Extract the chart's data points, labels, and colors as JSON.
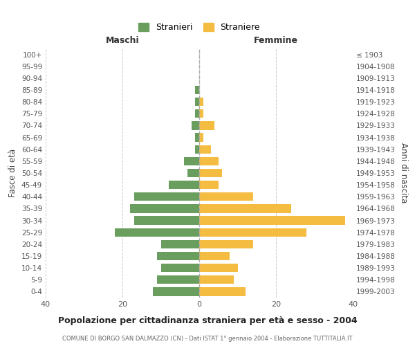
{
  "age_groups": [
    "0-4",
    "5-9",
    "10-14",
    "15-19",
    "20-24",
    "25-29",
    "30-34",
    "35-39",
    "40-44",
    "45-49",
    "50-54",
    "55-59",
    "60-64",
    "65-69",
    "70-74",
    "75-79",
    "80-84",
    "85-89",
    "90-94",
    "95-99",
    "100+"
  ],
  "birth_years": [
    "1999-2003",
    "1994-1998",
    "1989-1993",
    "1984-1988",
    "1979-1983",
    "1974-1978",
    "1969-1973",
    "1964-1968",
    "1959-1963",
    "1954-1958",
    "1949-1953",
    "1944-1948",
    "1939-1943",
    "1934-1938",
    "1929-1933",
    "1924-1928",
    "1919-1923",
    "1914-1918",
    "1909-1913",
    "1904-1908",
    "≤ 1903"
  ],
  "maschi": [
    12,
    11,
    10,
    11,
    10,
    22,
    17,
    18,
    17,
    8,
    3,
    4,
    1,
    1,
    2,
    1,
    1,
    1,
    0,
    0,
    0
  ],
  "femmine": [
    12,
    9,
    10,
    8,
    14,
    28,
    38,
    24,
    14,
    5,
    6,
    5,
    3,
    1,
    4,
    1,
    1,
    0,
    0,
    0,
    0
  ],
  "color_maschi": "#6a9e5e",
  "color_femmine": "#f5bc42",
  "title": "Popolazione per cittadinanza straniera per età e sesso - 2004",
  "subtitle": "COMUNE DI BORGO SAN DALMAZZO (CN) - Dati ISTAT 1° gennaio 2004 - Elaborazione TUTTITALIA.IT",
  "ylabel_left": "Fasce di età",
  "ylabel_right": "Anni di nascita",
  "legend_maschi": "Stranieri",
  "legend_femmine": "Straniere",
  "header_maschi": "Maschi",
  "header_femmine": "Femmine",
  "xlim": 40,
  "background_color": "#ffffff",
  "grid_color": "#cccccc"
}
